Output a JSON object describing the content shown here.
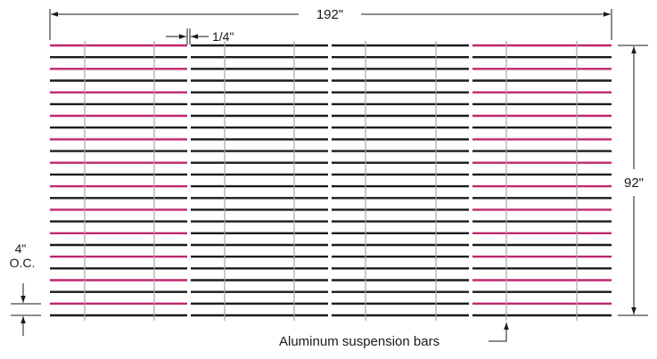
{
  "labels": {
    "overall_width": "192\"",
    "panel_gap": "1/4\"",
    "overall_height": "92\"",
    "spacing_value": "4\"",
    "spacing_unit": "O.C.",
    "suspension_bars": "Aluminum suspension bars"
  },
  "panels": {
    "count": 4,
    "accent_panels": [
      0,
      3
    ]
  },
  "strips": {
    "count": 24,
    "pattern": [
      "accent",
      "black"
    ]
  },
  "colors": {
    "black": "#1a1a1a",
    "accent": "#c0266e",
    "suspension_bar": "#a8a8a8",
    "dimension": "#1a1a1a"
  },
  "icons": [
    "arrow-left-icon",
    "arrow-right-icon",
    "arrow-up-icon",
    "arrow-down-icon",
    "leader-arrow-icon"
  ]
}
